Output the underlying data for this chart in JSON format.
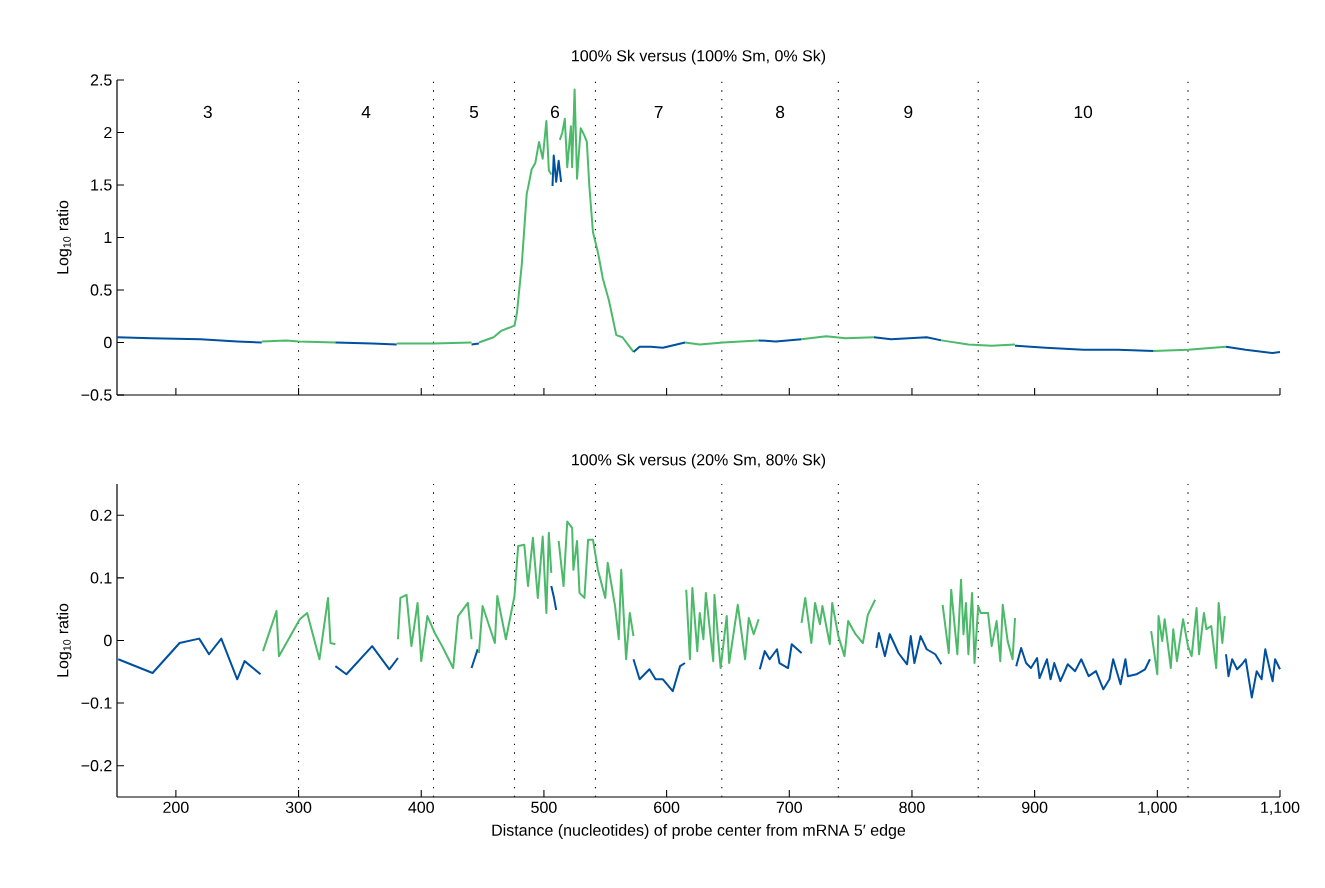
{
  "chart_data": [
    {
      "type": "line",
      "title": "100% Sk versus (100% Sm, 0% Sk)",
      "ylabel": "Log$_{10}$ ratio",
      "xlim": [
        152,
        1100
      ],
      "ylim": [
        -0.5,
        2.5
      ],
      "xticks": [
        200,
        300,
        400,
        500,
        600,
        700,
        800,
        900,
        1000,
        1100
      ],
      "yticks": [
        {
          "value": -0.5,
          "label": "−0.5"
        },
        0,
        0.5,
        1,
        1.5,
        2,
        2.5
      ],
      "tick_labels": "y",
      "ref_lines": [
        {
          "axis": "x",
          "value": 300,
          "line_style": "dotted"
        },
        {
          "axis": "x",
          "value": 410,
          "line_style": "dotted"
        },
        {
          "axis": "x",
          "value": 476,
          "line_style": "dotted"
        },
        {
          "axis": "x",
          "value": 542,
          "line_style": "dotted"
        },
        {
          "axis": "x",
          "value": 645,
          "line_style": "dotted"
        },
        {
          "axis": "x",
          "value": 740,
          "line_style": "dotted"
        },
        {
          "axis": "x",
          "value": 854,
          "line_style": "dotted"
        },
        {
          "axis": "x",
          "value": 1025,
          "line_style": "dotted"
        }
      ],
      "annotations": [
        "3",
        "4",
        "5",
        "6",
        "7",
        "8",
        "9",
        "10"
      ],
      "series": [
        {
          "color": "#0050a0",
          "x": [
            152,
            180,
            220,
            250,
            270
          ],
          "values": [
            0.05,
            0.04,
            0.03,
            0.01,
            0.0
          ]
        },
        {
          "color": "#4cba6a",
          "x": [
            270,
            290,
            300,
            330
          ],
          "values": [
            0.01,
            0.02,
            0.01,
            0.0
          ]
        },
        {
          "color": "#0050a0",
          "x": [
            330,
            360,
            380
          ],
          "values": [
            0.0,
            -0.01,
            -0.02
          ]
        },
        {
          "color": "#4cba6a",
          "x": [
            380,
            410,
            441
          ],
          "values": [
            -0.01,
            -0.01,
            0.0
          ]
        },
        {
          "color": "#0050a0",
          "x": [
            441,
            447
          ],
          "values": [
            -0.02,
            -0.01
          ]
        },
        {
          "color": "#4cba6a",
          "x": [
            447,
            459,
            465,
            476,
            478,
            482,
            486,
            487,
            490,
            493,
            496,
            499,
            502,
            504,
            506
          ],
          "values": [
            0.0,
            0.05,
            0.11,
            0.16,
            0.28,
            0.75,
            1.42,
            1.47,
            1.65,
            1.71,
            1.91,
            1.75,
            2.11,
            1.64,
            1.6
          ]
        },
        {
          "color": "#0050a0",
          "x": [
            507,
            508,
            510,
            512,
            514
          ],
          "values": [
            1.49,
            1.78,
            1.53,
            1.73,
            1.53
          ]
        },
        {
          "color": "#4cba6a",
          "x": [
            513,
            515,
            517,
            519,
            522,
            523,
            525,
            527,
            530,
            533,
            535,
            537,
            540,
            544,
            548,
            553,
            559,
            564,
            573
          ],
          "values": [
            1.93,
            2.0,
            2.13,
            1.67,
            2.06,
            1.67,
            2.41,
            1.56,
            2.04,
            1.97,
            1.91,
            1.49,
            1.05,
            0.86,
            0.61,
            0.4,
            0.07,
            0.05,
            -0.09
          ]
        },
        {
          "color": "#0050a0",
          "x": [
            573,
            578,
            587,
            597,
            615
          ],
          "values": [
            -0.09,
            -0.04,
            -0.04,
            -0.05,
            0.0
          ]
        },
        {
          "color": "#4cba6a",
          "x": [
            615,
            627,
            646,
            675
          ],
          "values": [
            0.0,
            -0.02,
            0.0,
            0.02
          ]
        },
        {
          "color": "#0050a0",
          "x": [
            675,
            689,
            710
          ],
          "values": [
            0.02,
            0.01,
            0.03
          ]
        },
        {
          "color": "#4cba6a",
          "x": [
            710,
            730,
            746,
            769
          ],
          "values": [
            0.03,
            0.06,
            0.04,
            0.05
          ]
        },
        {
          "color": "#0050a0",
          "x": [
            769,
            783,
            812,
            824
          ],
          "values": [
            0.05,
            0.03,
            0.05,
            0.02
          ]
        },
        {
          "color": "#4cba6a",
          "x": [
            824,
            846,
            865,
            884
          ],
          "values": [
            0.02,
            -0.02,
            -0.03,
            -0.02
          ]
        },
        {
          "color": "#0050a0",
          "x": [
            884,
            909,
            940,
            968,
            997
          ],
          "values": [
            -0.03,
            -0.05,
            -0.07,
            -0.07,
            -0.08
          ]
        },
        {
          "color": "#4cba6a",
          "x": [
            997,
            1025,
            1056
          ],
          "values": [
            -0.08,
            -0.07,
            -0.04
          ]
        },
        {
          "color": "#0050a0",
          "x": [
            1056,
            1072,
            1094,
            1100
          ],
          "values": [
            -0.04,
            -0.07,
            -0.1,
            -0.09
          ]
        }
      ]
    },
    {
      "type": "line",
      "title": "100% Sk versus (20% Sm, 80% Sk)",
      "ylabel": "Log$_{10}$ ratio",
      "xlabel": "Distance (nucleotides) of probe center from mRNA 5′ edge",
      "xlim": [
        152,
        1100
      ],
      "ylim": [
        -0.25,
        0.25
      ],
      "xticks": [
        200,
        300,
        400,
        500,
        600,
        700,
        800,
        900,
        {
          "value": 1000,
          "label": "1,000"
        },
        {
          "value": 1100,
          "label": "1,100"
        }
      ],
      "yticks": [
        {
          "value": -0.2,
          "label": "−0.2"
        },
        {
          "value": -0.1,
          "label": "−0.1"
        },
        0,
        0.1,
        0.2
      ],
      "ref_lines": [
        {
          "axis": "x",
          "value": 300,
          "line_style": "dotted"
        },
        {
          "axis": "x",
          "value": 410,
          "line_style": "dotted"
        },
        {
          "axis": "x",
          "value": 476,
          "line_style": "dotted"
        },
        {
          "axis": "x",
          "value": 542,
          "line_style": "dotted"
        },
        {
          "axis": "x",
          "value": 645,
          "line_style": "dotted"
        },
        {
          "axis": "x",
          "value": 740,
          "line_style": "dotted"
        },
        {
          "axis": "x",
          "value": 854,
          "line_style": "dotted"
        },
        {
          "axis": "x",
          "value": 1025,
          "line_style": "dotted"
        }
      ],
      "series": [
        {
          "color": "#0050a0",
          "x": [
            153,
            181,
            203,
            219,
            227,
            237,
            250,
            256,
            269
          ],
          "values": [
            -0.03,
            -0.052,
            -0.004,
            0.003,
            -0.022,
            0.003,
            -0.062,
            -0.033,
            -0.054
          ]
        },
        {
          "color": "#4cba6a",
          "x": [
            271,
            282,
            284,
            301,
            307,
            317,
            324,
            326,
            330
          ],
          "values": [
            -0.017,
            0.047,
            -0.025,
            0.034,
            0.044,
            -0.03,
            0.068,
            -0.004,
            -0.006
          ]
        },
        {
          "color": "#0050a0",
          "x": [
            330,
            339,
            360,
            374,
            381
          ],
          "values": [
            -0.041,
            -0.054,
            -0.009,
            -0.046,
            -0.028
          ]
        },
        {
          "color": "#4cba6a",
          "x": [
            381,
            383,
            388,
            392,
            397,
            400,
            405,
            411,
            417,
            426,
            430,
            438,
            441
          ],
          "values": [
            0.002,
            0.068,
            0.073,
            -0.009,
            0.06,
            -0.033,
            0.039,
            0.012,
            -0.009,
            -0.044,
            0.039,
            0.06,
            0.002
          ]
        },
        {
          "color": "#0050a0",
          "x": [
            441,
            446
          ],
          "values": [
            -0.044,
            -0.014
          ]
        },
        {
          "color": "#4cba6a",
          "x": [
            447,
            450,
            460,
            462,
            469,
            476,
            479,
            484,
            487,
            491,
            495,
            499,
            502,
            504,
            506
          ],
          "values": [
            -0.02,
            0.055,
            -0.004,
            0.071,
            0.002,
            0.071,
            0.151,
            0.153,
            0.087,
            0.164,
            0.068,
            0.166,
            0.044,
            0.172,
            0.108
          ]
        },
        {
          "color": "#0050a0",
          "x": [
            506,
            508,
            510
          ],
          "values": [
            0.087,
            0.07,
            0.049
          ]
        },
        {
          "color": "#4cba6a",
          "x": [
            512,
            516,
            519,
            523,
            524,
            527,
            529,
            533,
            536,
            540,
            544,
            550,
            552,
            558,
            561,
            563,
            567,
            570,
            573
          ],
          "values": [
            0.159,
            0.087,
            0.19,
            0.18,
            0.113,
            0.159,
            0.076,
            0.068,
            0.161,
            0.161,
            0.113,
            0.068,
            0.124,
            0.055,
            0.002,
            0.113,
            -0.03,
            0.044,
            0.007
          ]
        },
        {
          "color": "#0050a0",
          "x": [
            573,
            578,
            586,
            591,
            597,
            605,
            611,
            615
          ],
          "values": [
            -0.03,
            -0.062,
            -0.046,
            -0.062,
            -0.062,
            -0.081,
            -0.041,
            -0.036
          ]
        },
        {
          "color": "#4cba6a",
          "x": [
            616,
            619,
            621,
            625,
            627,
            630,
            632,
            638,
            639,
            644,
            649,
            651,
            658,
            664,
            667,
            671,
            675
          ],
          "values": [
            0.081,
            -0.03,
            0.084,
            -0.017,
            0.044,
            0.002,
            0.076,
            -0.033,
            0.073,
            -0.044,
            0.039,
            -0.036,
            0.057,
            -0.03,
            0.036,
            0.01,
            0.034
          ]
        },
        {
          "color": "#0050a0",
          "x": [
            676,
            680,
            684,
            690,
            692,
            699,
            702,
            710
          ],
          "values": [
            -0.046,
            -0.017,
            -0.03,
            -0.014,
            -0.036,
            -0.044,
            -0.006,
            -0.02
          ]
        },
        {
          "color": "#4cba6a",
          "x": [
            710,
            713,
            718,
            721,
            725,
            727,
            733,
            735,
            740,
            745,
            748,
            754,
            760,
            764,
            770
          ],
          "values": [
            0.028,
            0.068,
            -0.004,
            0.06,
            0.026,
            0.055,
            -0.006,
            0.06,
            0.007,
            -0.025,
            0.031,
            0.01,
            -0.004,
            0.041,
            0.065
          ]
        },
        {
          "color": "#0050a0",
          "x": [
            771,
            773,
            778,
            782,
            789,
            796,
            799,
            802,
            807,
            812,
            819,
            824
          ],
          "values": [
            -0.012,
            0.012,
            -0.025,
            0.01,
            -0.02,
            -0.038,
            0.007,
            -0.036,
            0.007,
            -0.014,
            -0.022,
            -0.038
          ]
        },
        {
          "color": "#4cba6a",
          "x": [
            825,
            830,
            832,
            837,
            840,
            842,
            844,
            846,
            849,
            851,
            854,
            856,
            862,
            865,
            869,
            872,
            874,
            878,
            882,
            884
          ],
          "values": [
            0.057,
            -0.02,
            0.081,
            -0.022,
            0.097,
            0.01,
            0.06,
            -0.022,
            0.076,
            -0.036,
            0.055,
            0.044,
            0.044,
            -0.009,
            0.031,
            -0.033,
            0.057,
            -0.001,
            -0.03,
            0.036
          ]
        },
        {
          "color": "#0050a0",
          "x": [
            885,
            889,
            893,
            897,
            902,
            904,
            910,
            913,
            916,
            921,
            927,
            933,
            938,
            944,
            950,
            956,
            961,
            964,
            970,
            974,
            976,
            983,
            990,
            994
          ],
          "values": [
            -0.041,
            -0.012,
            -0.036,
            -0.044,
            -0.028,
            -0.06,
            -0.03,
            -0.062,
            -0.036,
            -0.065,
            -0.038,
            -0.049,
            -0.03,
            -0.057,
            -0.049,
            -0.078,
            -0.062,
            -0.03,
            -0.07,
            -0.03,
            -0.057,
            -0.054,
            -0.046,
            -0.03
          ]
        },
        {
          "color": "#4cba6a",
          "x": [
            995,
            1000,
            1001,
            1004,
            1006,
            1011,
            1013,
            1016,
            1021,
            1025,
            1028,
            1032,
            1034,
            1038,
            1040,
            1044,
            1048,
            1050,
            1053,
            1055
          ],
          "values": [
            0.015,
            -0.054,
            0.039,
            -0.001,
            0.034,
            -0.044,
            0.018,
            -0.033,
            0.034,
            -0.009,
            -0.025,
            0.052,
            -0.022,
            0.044,
            0.018,
            0.023,
            -0.044,
            0.06,
            -0.004,
            0.039
          ]
        },
        {
          "color": "#0050a0",
          "x": [
            1056,
            1058,
            1061,
            1065,
            1069,
            1072,
            1077,
            1081,
            1085,
            1088,
            1092,
            1094,
            1096,
            1100
          ],
          "values": [
            -0.022,
            -0.057,
            -0.03,
            -0.046,
            -0.038,
            -0.03,
            -0.091,
            -0.049,
            -0.062,
            -0.014,
            -0.049,
            -0.065,
            -0.03,
            -0.046
          ]
        }
      ]
    }
  ]
}
